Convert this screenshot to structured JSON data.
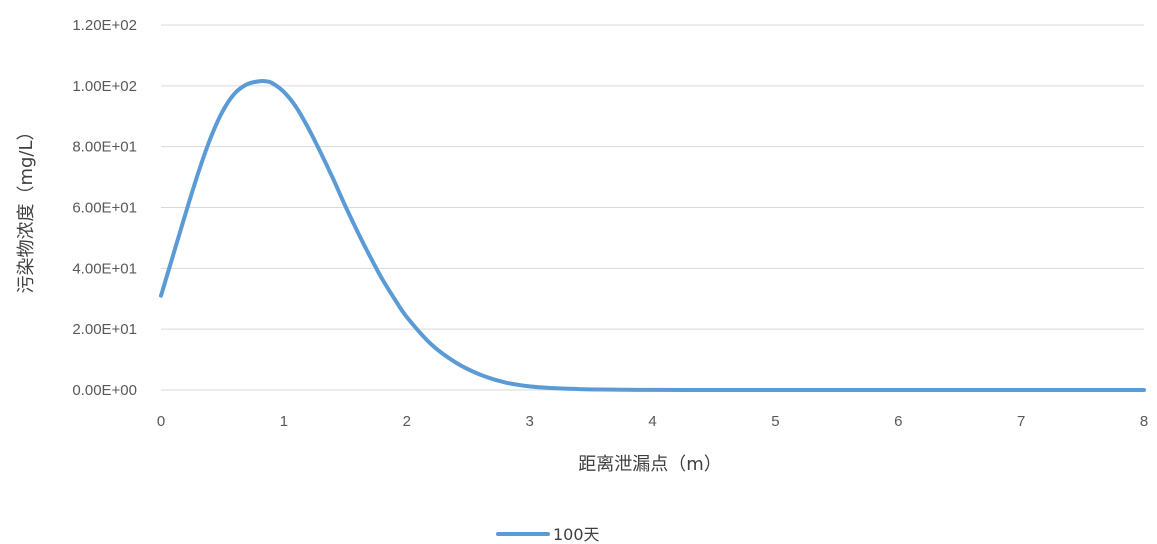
{
  "chart_data": {
    "type": "line",
    "title": "",
    "xlabel": "距离泄漏点（m）",
    "ylabel": "污染物浓度（mg/L）",
    "xlim": [
      0,
      8
    ],
    "ylim": [
      0,
      120
    ],
    "x_ticks": [
      0,
      1,
      2,
      3,
      4,
      5,
      6,
      7,
      8
    ],
    "y_ticks": [
      0,
      20,
      40,
      60,
      80,
      100,
      120
    ],
    "x_tick_labels": [
      "0",
      "1",
      "2",
      "3",
      "4",
      "5",
      "6",
      "7",
      "8"
    ],
    "y_tick_labels": [
      "0.00E+00",
      "2.00E+01",
      "4.00E+01",
      "6.00E+01",
      "8.00E+01",
      "1.00E+02",
      "1.20E+02"
    ],
    "grid": "horizontal",
    "legend_position": "bottom",
    "series": [
      {
        "name": "100天",
        "color": "#5b9bd5",
        "x": [
          0,
          0.1,
          0.2,
          0.3,
          0.4,
          0.5,
          0.6,
          0.7,
          0.8,
          0.85,
          0.9,
          1.0,
          1.1,
          1.2,
          1.3,
          1.4,
          1.5,
          1.6,
          1.7,
          1.8,
          1.9,
          2.0,
          2.2,
          2.4,
          2.6,
          2.8,
          3.0,
          3.2,
          3.4,
          3.6,
          3.8,
          4.0,
          4.5,
          5.0,
          6.0,
          7.0,
          8.0
        ],
        "y": [
          31,
          44.5,
          58,
          71,
          82.5,
          91.5,
          97.5,
          100.5,
          101.5,
          101.5,
          101,
          98,
          93,
          86,
          78,
          69.5,
          60.5,
          52,
          44,
          36.5,
          30,
          24,
          15,
          9,
          5,
          2.5,
          1.2,
          0.6,
          0.3,
          0.15,
          0.08,
          0.03,
          0.01,
          0,
          0,
          0,
          0
        ]
      }
    ]
  }
}
